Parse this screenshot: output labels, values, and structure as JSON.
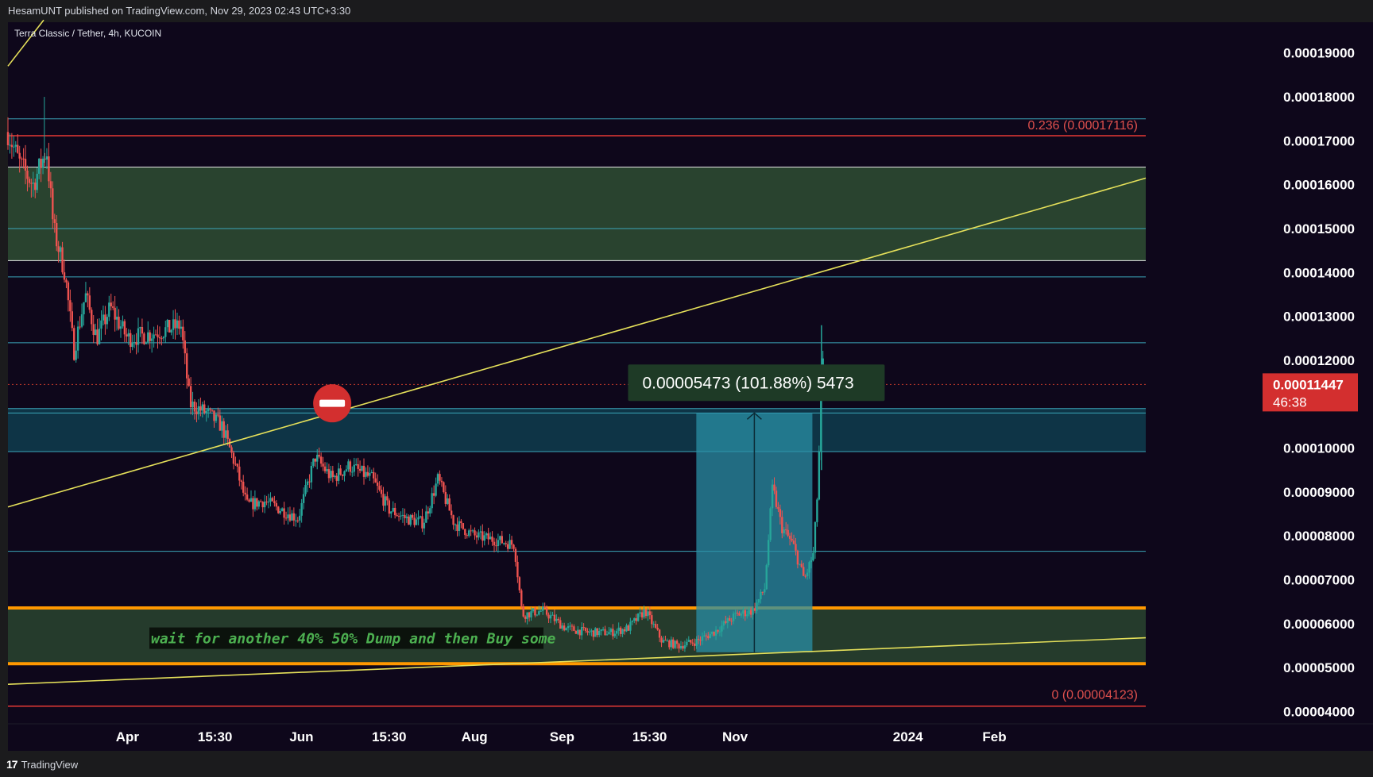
{
  "header": {
    "published": "HesamUNT published on TradingView.com, Nov 29, 2023 02:43 UTC+3:30",
    "symbol": "Terra Classic / Tether, 4h, KUCOIN"
  },
  "footer": {
    "brand": "TradingView"
  },
  "colors": {
    "background": "#0e071b",
    "up": "#26a69a",
    "down": "#ef5350",
    "trendline": "#e5e05a",
    "orange_band": "#ff9800",
    "fib_red": "#e53935",
    "zone_green": "#2e4d33",
    "zone_blue": "#0e3a4b",
    "measure": "#2a8fa6"
  },
  "chart_data": {
    "type": "candlestick",
    "title": "Terra Classic / Tether, 4h, KUCOIN",
    "ylim": [
      3.72e-05,
      0.000197
    ],
    "y_ticks": [
      "0.00019000",
      "0.00018000",
      "0.00017000",
      "0.00016000",
      "0.00015000",
      "0.00014000",
      "0.00013000",
      "0.00012000",
      "0.00011000",
      "0.00010000",
      "0.00009000",
      "0.00008000",
      "0.00007000",
      "0.00006000",
      "0.00005000",
      "0.00004000"
    ],
    "y_tick_values": [
      0.00019,
      0.00018,
      0.00017,
      0.00016,
      0.00015,
      0.00014,
      0.00013,
      0.00012,
      0.00011,
      0.0001,
      9e-05,
      8e-05,
      7e-05,
      6e-05,
      5e-05,
      4e-05
    ],
    "x_ticks": [
      {
        "label": "Apr",
        "pos": 0.105
      },
      {
        "label": "15:30",
        "pos": 0.182
      },
      {
        "label": "Jun",
        "pos": 0.258
      },
      {
        "label": "15:30",
        "pos": 0.335
      },
      {
        "label": "Aug",
        "pos": 0.41
      },
      {
        "label": "Sep",
        "pos": 0.487
      },
      {
        "label": "15:30",
        "pos": 0.564
      },
      {
        "label": "Nov",
        "pos": 0.639
      },
      {
        "label": "2024",
        "pos": 0.791
      },
      {
        "label": "Feb",
        "pos": 0.867
      }
    ],
    "price_path": [
      [
        0.0,
        0.000172
      ],
      [
        0.01,
        0.000165
      ],
      [
        0.022,
        0.00016
      ],
      [
        0.034,
        0.000168
      ],
      [
        0.04,
        0.00015
      ],
      [
        0.05,
        0.00014
      ],
      [
        0.058,
        0.000122
      ],
      [
        0.068,
        0.000135
      ],
      [
        0.078,
        0.000125
      ],
      [
        0.09,
        0.000132
      ],
      [
        0.105,
        0.000125
      ],
      [
        0.125,
        0.000126
      ],
      [
        0.14,
        0.000127
      ],
      [
        0.152,
        0.000128
      ],
      [
        0.16,
        0.00011
      ],
      [
        0.175,
        0.000108
      ],
      [
        0.188,
        0.000105
      ],
      [
        0.2,
        9.6e-05
      ],
      [
        0.21,
        8.7e-05
      ],
      [
        0.225,
        8.8e-05
      ],
      [
        0.24,
        8.6e-05
      ],
      [
        0.255,
        8.4e-05
      ],
      [
        0.27,
        9.8e-05
      ],
      [
        0.285,
        9.3e-05
      ],
      [
        0.3,
        9.6e-05
      ],
      [
        0.32,
        9.3e-05
      ],
      [
        0.335,
        8.6e-05
      ],
      [
        0.35,
        8.4e-05
      ],
      [
        0.365,
        8.3e-05
      ],
      [
        0.378,
        9.3e-05
      ],
      [
        0.392,
        8.3e-05
      ],
      [
        0.41,
        8e-05
      ],
      [
        0.43,
        7.9e-05
      ],
      [
        0.445,
        7.8e-05
      ],
      [
        0.452,
        6.2e-05
      ],
      [
        0.47,
        6.3e-05
      ],
      [
        0.49,
        5.9e-05
      ],
      [
        0.51,
        5.8e-05
      ],
      [
        0.53,
        5.8e-05
      ],
      [
        0.545,
        5.9e-05
      ],
      [
        0.56,
        6.3e-05
      ],
      [
        0.575,
        5.6e-05
      ],
      [
        0.59,
        5.5e-05
      ],
      [
        0.605,
        5.6e-05
      ],
      [
        0.62,
        5.8e-05
      ],
      [
        0.64,
        6.2e-05
      ],
      [
        0.655,
        6.3e-05
      ],
      [
        0.665,
        6.8e-05
      ],
      [
        0.672,
        9.1e-05
      ],
      [
        0.68,
        8.2e-05
      ],
      [
        0.69,
        7.8e-05
      ],
      [
        0.7,
        7e-05
      ],
      [
        0.708,
        7.6e-05
      ],
      [
        0.712,
        9.2e-05
      ],
      [
        0.714,
        0.000108
      ],
      [
        0.716,
        0.00012
      ],
      [
        0.718,
        0.0001145
      ]
    ],
    "wick_extremes": {
      "high": 0.000128,
      "high_pos": 0.715,
      "march_high": 0.00018,
      "march_high_pos": 0.032
    },
    "annotations": {
      "fib_236": "0.236 (0.00017116)",
      "fib_0": "0 (0.00004123)",
      "measure_label": "0.00005473 (101.88%) 5473",
      "note": "wait for another 40% 50% Dump and then Buy some",
      "last_price": "0.00011447",
      "countdown": "46:38"
    },
    "levels": {
      "fib_236": 0.00017116,
      "fib_0": 4.123e-05,
      "cyan_lines": [
        0.000175,
        0.00015,
        0.000139,
        0.000124,
        0.000108,
        7.65e-05
      ],
      "green_zone_top": [
        0.000164,
        0.0001427
      ],
      "blue_zone": [
        0.000109,
        9.92e-05
      ],
      "orange_zone": [
        6.36e-05,
        5.09e-05
      ],
      "dotted_red": 0.0001145
    },
    "measure_box": {
      "x0": 0.605,
      "x1": 0.707,
      "low": 5.35e-05,
      "high": 0.000108
    },
    "trendlines": [
      {
        "x0": 0.0,
        "y0": 8.66e-05,
        "x1": 1.0,
        "y1": 0.0001615
      },
      {
        "x0": 0.0,
        "y0": 4.62e-05,
        "x1": 1.0,
        "y1": 5.68e-05
      }
    ],
    "plot_width_frac": 1.0
  }
}
